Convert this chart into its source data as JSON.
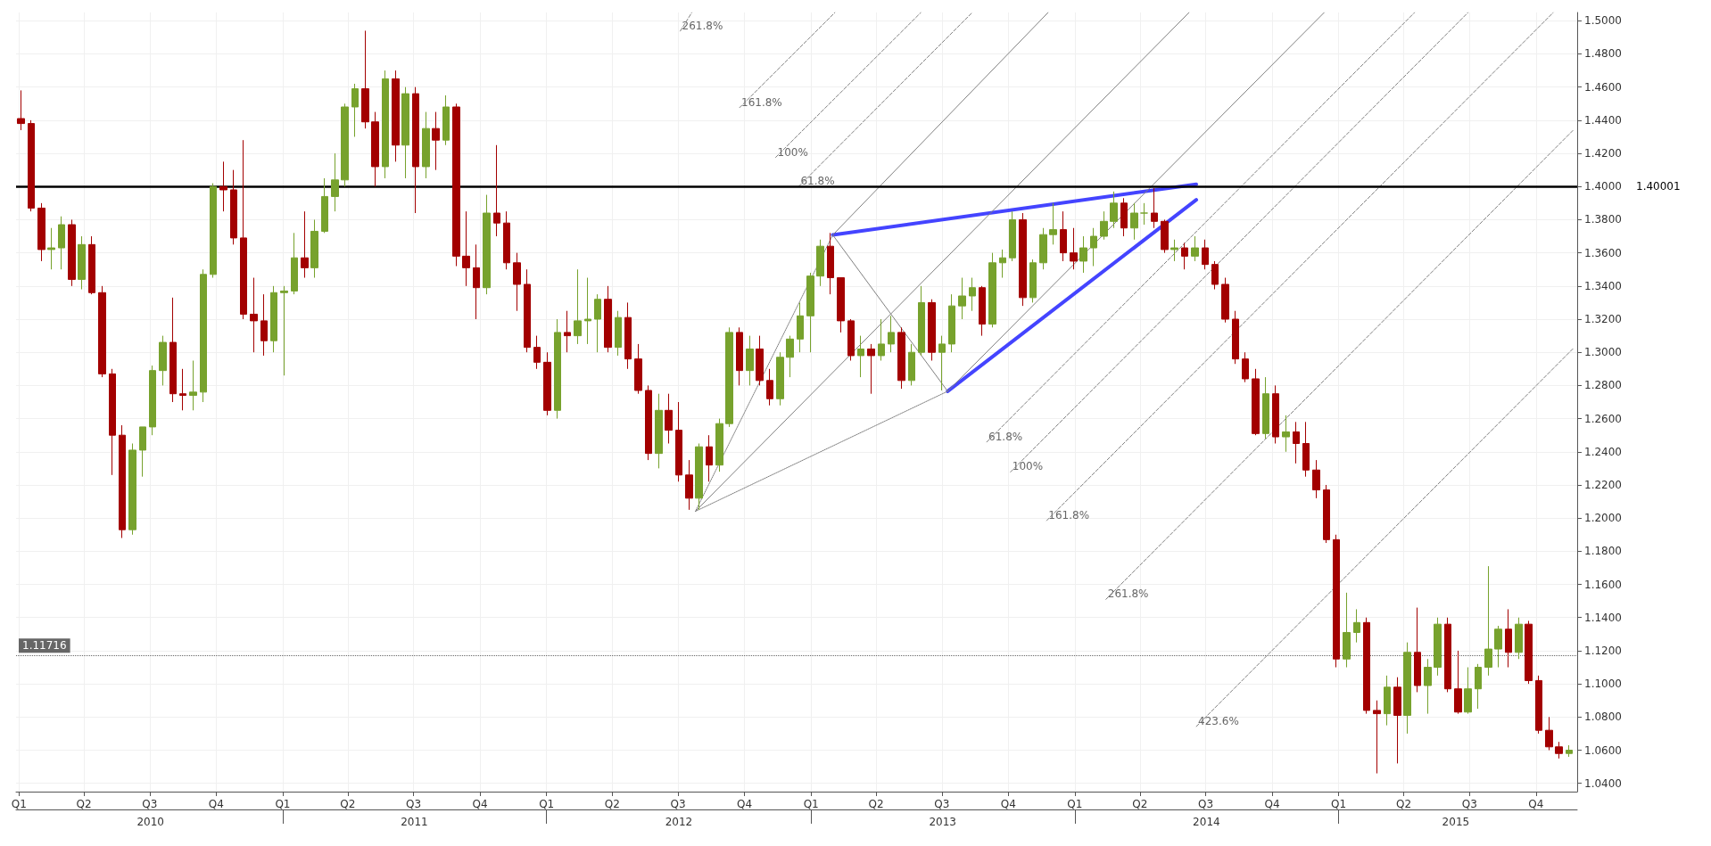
{
  "chart_data": {
    "type": "candlestick",
    "x": [
      "2010-01-04",
      "2010-01-18",
      "2010-02-01",
      "2010-02-15",
      "2010-03-01",
      "2010-03-15",
      "2010-03-29",
      "2010-04-12",
      "2010-04-26",
      "2010-05-10",
      "2010-05-24",
      "2010-06-07",
      "2010-06-21",
      "2010-07-05",
      "2010-07-19",
      "2010-08-02",
      "2010-08-16",
      "2010-08-30",
      "2010-09-13",
      "2010-09-27",
      "2010-10-11",
      "2010-10-25",
      "2010-11-08",
      "2010-11-22",
      "2010-12-06",
      "2010-12-20",
      "2011-01-03",
      "2011-01-17",
      "2011-01-31",
      "2011-02-14",
      "2011-02-28",
      "2011-03-14",
      "2011-03-28",
      "2011-04-11",
      "2011-04-25",
      "2011-05-09",
      "2011-05-23",
      "2011-06-06",
      "2011-06-20",
      "2011-07-04",
      "2011-07-18",
      "2011-08-01",
      "2011-08-15",
      "2011-08-29",
      "2011-09-12",
      "2011-09-26",
      "2011-10-10",
      "2011-10-24",
      "2011-11-07",
      "2011-11-21",
      "2011-12-05",
      "2011-12-19",
      "2012-01-02",
      "2012-01-16",
      "2012-01-30",
      "2012-02-13",
      "2012-02-27",
      "2012-03-12",
      "2012-03-26",
      "2012-04-09",
      "2012-04-23",
      "2012-05-07",
      "2012-05-21",
      "2012-06-04",
      "2012-06-18",
      "2012-07-02",
      "2012-07-16",
      "2012-07-30",
      "2012-08-13",
      "2012-08-27",
      "2012-09-10",
      "2012-09-24",
      "2012-10-08",
      "2012-10-22",
      "2012-11-05",
      "2012-11-19",
      "2012-12-03",
      "2012-12-17",
      "2012-12-31",
      "2013-01-14",
      "2013-01-28",
      "2013-02-11",
      "2013-02-25",
      "2013-03-11",
      "2013-03-25",
      "2013-04-08",
      "2013-04-22",
      "2013-05-06",
      "2013-05-20",
      "2013-06-03",
      "2013-06-17",
      "2013-07-01",
      "2013-07-15",
      "2013-07-29",
      "2013-08-12",
      "2013-08-26",
      "2013-09-09",
      "2013-09-23",
      "2013-10-07",
      "2013-10-21",
      "2013-11-04",
      "2013-11-18",
      "2013-12-02",
      "2013-12-16",
      "2013-12-30",
      "2014-01-13",
      "2014-01-27",
      "2014-02-10",
      "2014-02-24",
      "2014-03-10",
      "2014-03-24",
      "2014-04-07",
      "2014-04-21",
      "2014-05-05",
      "2014-05-19",
      "2014-06-02",
      "2014-06-16",
      "2014-06-30",
      "2014-07-14",
      "2014-07-28",
      "2014-08-11",
      "2014-08-25",
      "2014-09-08",
      "2014-09-22",
      "2014-10-06",
      "2014-10-20",
      "2014-11-03",
      "2014-11-17",
      "2014-12-01",
      "2014-12-15",
      "2014-12-29",
      "2015-01-12",
      "2015-01-26",
      "2015-02-09",
      "2015-02-23",
      "2015-03-09",
      "2015-03-23",
      "2015-04-06",
      "2015-04-20",
      "2015-05-04",
      "2015-05-18",
      "2015-06-01",
      "2015-06-15",
      "2015-06-29",
      "2015-07-13",
      "2015-07-27",
      "2015-08-10",
      "2015-08-24",
      "2015-09-07",
      "2015-09-21",
      "2015-10-05",
      "2015-10-19",
      "2015-11-02",
      "2015-11-16"
    ],
    "ohlc": [
      [
        1.441,
        1.458,
        1.434,
        1.438
      ],
      [
        1.438,
        1.44,
        1.385,
        1.387
      ],
      [
        1.387,
        1.39,
        1.355,
        1.362
      ],
      [
        1.362,
        1.375,
        1.35,
        1.363
      ],
      [
        1.363,
        1.382,
        1.35,
        1.377
      ],
      [
        1.377,
        1.38,
        1.34,
        1.344
      ],
      [
        1.344,
        1.37,
        1.338,
        1.365
      ],
      [
        1.365,
        1.37,
        1.335,
        1.336
      ],
      [
        1.336,
        1.34,
        1.285,
        1.287
      ],
      [
        1.287,
        1.29,
        1.226,
        1.25
      ],
      [
        1.25,
        1.256,
        1.188,
        1.193
      ],
      [
        1.193,
        1.245,
        1.19,
        1.241
      ],
      [
        1.241,
        1.255,
        1.225,
        1.255
      ],
      [
        1.255,
        1.292,
        1.25,
        1.289
      ],
      [
        1.289,
        1.31,
        1.28,
        1.306
      ],
      [
        1.306,
        1.333,
        1.27,
        1.275
      ],
      [
        1.275,
        1.29,
        1.265,
        1.274
      ],
      [
        1.274,
        1.295,
        1.265,
        1.276
      ],
      [
        1.276,
        1.35,
        1.27,
        1.347
      ],
      [
        1.347,
        1.402,
        1.345,
        1.4
      ],
      [
        1.4,
        1.415,
        1.385,
        1.398
      ],
      [
        1.398,
        1.41,
        1.365,
        1.369
      ],
      [
        1.369,
        1.428,
        1.32,
        1.323
      ],
      [
        1.323,
        1.345,
        1.3,
        1.319
      ],
      [
        1.319,
        1.335,
        1.298,
        1.307
      ],
      [
        1.307,
        1.34,
        1.3,
        1.336
      ],
      [
        1.336,
        1.34,
        1.286,
        1.337
      ],
      [
        1.337,
        1.372,
        1.335,
        1.357
      ],
      [
        1.357,
        1.385,
        1.345,
        1.351
      ],
      [
        1.351,
        1.38,
        1.345,
        1.373
      ],
      [
        1.373,
        1.405,
        1.372,
        1.394
      ],
      [
        1.394,
        1.42,
        1.385,
        1.404
      ],
      [
        1.404,
        1.45,
        1.4,
        1.448
      ],
      [
        1.448,
        1.462,
        1.43,
        1.459
      ],
      [
        1.459,
        1.494,
        1.435,
        1.439
      ],
      [
        1.439,
        1.445,
        1.4,
        1.412
      ],
      [
        1.412,
        1.47,
        1.405,
        1.465
      ],
      [
        1.465,
        1.47,
        1.415,
        1.425
      ],
      [
        1.425,
        1.46,
        1.405,
        1.456
      ],
      [
        1.456,
        1.46,
        1.384,
        1.412
      ],
      [
        1.412,
        1.445,
        1.405,
        1.435
      ],
      [
        1.435,
        1.445,
        1.41,
        1.428
      ],
      [
        1.428,
        1.455,
        1.425,
        1.448
      ],
      [
        1.448,
        1.45,
        1.352,
        1.358
      ],
      [
        1.358,
        1.385,
        1.34,
        1.351
      ],
      [
        1.351,
        1.365,
        1.32,
        1.339
      ],
      [
        1.339,
        1.395,
        1.335,
        1.384
      ],
      [
        1.384,
        1.425,
        1.37,
        1.378
      ],
      [
        1.378,
        1.385,
        1.35,
        1.354
      ],
      [
        1.354,
        1.36,
        1.325,
        1.341
      ],
      [
        1.341,
        1.35,
        1.3,
        1.303
      ],
      [
        1.303,
        1.31,
        1.29,
        1.294
      ],
      [
        1.294,
        1.3,
        1.262,
        1.265
      ],
      [
        1.265,
        1.32,
        1.26,
        1.312
      ],
      [
        1.312,
        1.325,
        1.3,
        1.31
      ],
      [
        1.31,
        1.35,
        1.305,
        1.319
      ],
      [
        1.319,
        1.345,
        1.305,
        1.32
      ],
      [
        1.32,
        1.335,
        1.3,
        1.332
      ],
      [
        1.332,
        1.34,
        1.3,
        1.303
      ],
      [
        1.303,
        1.325,
        1.298,
        1.321
      ],
      [
        1.321,
        1.33,
        1.29,
        1.296
      ],
      [
        1.296,
        1.305,
        1.275,
        1.277
      ],
      [
        1.277,
        1.28,
        1.235,
        1.239
      ],
      [
        1.239,
        1.275,
        1.23,
        1.265
      ],
      [
        1.265,
        1.275,
        1.245,
        1.253
      ],
      [
        1.253,
        1.27,
        1.222,
        1.226
      ],
      [
        1.226,
        1.235,
        1.205,
        1.212
      ],
      [
        1.212,
        1.245,
        1.205,
        1.243
      ],
      [
        1.243,
        1.25,
        1.222,
        1.232
      ],
      [
        1.232,
        1.26,
        1.228,
        1.257
      ],
      [
        1.257,
        1.315,
        1.255,
        1.312
      ],
      [
        1.312,
        1.315,
        1.28,
        1.289
      ],
      [
        1.289,
        1.31,
        1.28,
        1.302
      ],
      [
        1.302,
        1.31,
        1.28,
        1.283
      ],
      [
        1.283,
        1.29,
        1.268,
        1.272
      ],
      [
        1.272,
        1.3,
        1.268,
        1.297
      ],
      [
        1.297,
        1.31,
        1.285,
        1.308
      ],
      [
        1.308,
        1.33,
        1.3,
        1.322
      ],
      [
        1.322,
        1.348,
        1.3,
        1.346
      ],
      [
        1.346,
        1.368,
        1.34,
        1.364
      ],
      [
        1.364,
        1.372,
        1.335,
        1.345
      ],
      [
        1.345,
        1.345,
        1.312,
        1.319
      ],
      [
        1.319,
        1.32,
        1.295,
        1.298
      ],
      [
        1.298,
        1.31,
        1.285,
        1.302
      ],
      [
        1.302,
        1.305,
        1.275,
        1.298
      ],
      [
        1.298,
        1.32,
        1.295,
        1.305
      ],
      [
        1.305,
        1.322,
        1.3,
        1.312
      ],
      [
        1.312,
        1.315,
        1.278,
        1.283
      ],
      [
        1.283,
        1.305,
        1.28,
        1.3
      ],
      [
        1.3,
        1.34,
        1.298,
        1.33
      ],
      [
        1.33,
        1.332,
        1.295,
        1.3
      ],
      [
        1.3,
        1.31,
        1.277,
        1.305
      ],
      [
        1.305,
        1.335,
        1.3,
        1.328
      ],
      [
        1.328,
        1.345,
        1.32,
        1.334
      ],
      [
        1.334,
        1.345,
        1.325,
        1.339
      ],
      [
        1.339,
        1.34,
        1.31,
        1.317
      ],
      [
        1.317,
        1.36,
        1.315,
        1.354
      ],
      [
        1.354,
        1.362,
        1.345,
        1.357
      ],
      [
        1.357,
        1.385,
        1.355,
        1.38
      ],
      [
        1.38,
        1.384,
        1.328,
        1.333
      ],
      [
        1.333,
        1.356,
        1.33,
        1.354
      ],
      [
        1.354,
        1.375,
        1.35,
        1.371
      ],
      [
        1.371,
        1.39,
        1.365,
        1.374
      ],
      [
        1.374,
        1.385,
        1.355,
        1.36
      ],
      [
        1.36,
        1.375,
        1.35,
        1.355
      ],
      [
        1.355,
        1.37,
        1.348,
        1.363
      ],
      [
        1.363,
        1.375,
        1.352,
        1.37
      ],
      [
        1.37,
        1.385,
        1.368,
        1.379
      ],
      [
        1.379,
        1.397,
        1.375,
        1.39
      ],
      [
        1.39,
        1.393,
        1.37,
        1.375
      ],
      [
        1.375,
        1.39,
        1.368,
        1.384
      ],
      [
        1.384,
        1.39,
        1.377,
        1.384
      ],
      [
        1.384,
        1.399,
        1.375,
        1.379
      ],
      [
        1.379,
        1.38,
        1.36,
        1.362
      ],
      [
        1.362,
        1.368,
        1.355,
        1.363
      ],
      [
        1.363,
        1.366,
        1.35,
        1.358
      ],
      [
        1.358,
        1.37,
        1.355,
        1.363
      ],
      [
        1.363,
        1.368,
        1.35,
        1.353
      ],
      [
        1.353,
        1.355,
        1.338,
        1.341
      ],
      [
        1.341,
        1.345,
        1.318,
        1.32
      ],
      [
        1.32,
        1.325,
        1.293,
        1.296
      ],
      [
        1.296,
        1.3,
        1.282,
        1.284
      ],
      [
        1.284,
        1.29,
        1.25,
        1.251
      ],
      [
        1.251,
        1.285,
        1.248,
        1.275
      ],
      [
        1.275,
        1.28,
        1.245,
        1.249
      ],
      [
        1.249,
        1.262,
        1.24,
        1.252
      ],
      [
        1.252,
        1.258,
        1.233,
        1.245
      ],
      [
        1.245,
        1.258,
        1.225,
        1.229
      ],
      [
        1.229,
        1.235,
        1.212,
        1.217
      ],
      [
        1.217,
        1.22,
        1.185,
        1.187
      ],
      [
        1.187,
        1.19,
        1.11,
        1.115
      ],
      [
        1.115,
        1.155,
        1.11,
        1.131
      ],
      [
        1.131,
        1.145,
        1.125,
        1.137
      ],
      [
        1.137,
        1.14,
        1.082,
        1.084
      ],
      [
        1.084,
        1.09,
        1.046,
        1.082
      ],
      [
        1.082,
        1.105,
        1.075,
        1.098
      ],
      [
        1.098,
        1.104,
        1.052,
        1.081
      ],
      [
        1.081,
        1.125,
        1.07,
        1.119
      ],
      [
        1.119,
        1.146,
        1.095,
        1.099
      ],
      [
        1.099,
        1.115,
        1.082,
        1.11
      ],
      [
        1.11,
        1.14,
        1.105,
        1.136
      ],
      [
        1.136,
        1.14,
        1.095,
        1.097
      ],
      [
        1.097,
        1.12,
        1.082,
        1.083
      ],
      [
        1.083,
        1.11,
        1.082,
        1.097
      ],
      [
        1.097,
        1.112,
        1.085,
        1.11
      ],
      [
        1.11,
        1.171,
        1.105,
        1.121
      ],
      [
        1.121,
        1.135,
        1.11,
        1.133
      ],
      [
        1.133,
        1.145,
        1.11,
        1.119
      ],
      [
        1.119,
        1.14,
        1.115,
        1.136
      ],
      [
        1.136,
        1.138,
        1.1,
        1.102
      ],
      [
        1.102,
        1.105,
        1.07,
        1.072
      ],
      [
        1.072,
        1.08,
        1.06,
        1.062
      ],
      [
        1.062,
        1.065,
        1.055,
        1.058
      ],
      [
        1.058,
        1.063,
        1.056,
        1.06
      ]
    ],
    "colors": [
      "#a30000",
      "#a30000",
      "#a30000",
      "#77a22d",
      "#77a22d",
      "#a30000",
      "#77a22d",
      "#a30000",
      "#a30000",
      "#a30000",
      "#a30000",
      "#77a22d",
      "#77a22d",
      "#77a22d",
      "#77a22d",
      "#a30000",
      "#a30000",
      "#77a22d",
      "#77a22d",
      "#77a22d",
      "#a30000",
      "#a30000",
      "#a30000",
      "#a30000",
      "#a30000",
      "#77a22d",
      "#77a22d",
      "#77a22d",
      "#a30000",
      "#77a22d",
      "#77a22d",
      "#77a22d",
      "#77a22d",
      "#77a22d",
      "#a30000",
      "#a30000",
      "#77a22d",
      "#a30000",
      "#77a22d",
      "#a30000",
      "#77a22d",
      "#a30000",
      "#77a22d",
      "#a30000",
      "#a30000",
      "#a30000",
      "#77a22d",
      "#a30000",
      "#a30000",
      "#a30000",
      "#a30000",
      "#a30000",
      "#a30000",
      "#77a22d",
      "#a30000",
      "#77a22d",
      "#77a22d",
      "#77a22d",
      "#a30000",
      "#77a22d",
      "#a30000",
      "#a30000",
      "#a30000",
      "#77a22d",
      "#a30000",
      "#a30000",
      "#a30000",
      "#77a22d",
      "#a30000",
      "#77a22d",
      "#77a22d",
      "#a30000",
      "#77a22d",
      "#a30000",
      "#a30000",
      "#77a22d",
      "#77a22d",
      "#77a22d",
      "#77a22d",
      "#77a22d",
      "#a30000",
      "#a30000",
      "#a30000",
      "#77a22d",
      "#a30000",
      "#77a22d",
      "#77a22d",
      "#a30000",
      "#77a22d",
      "#77a22d",
      "#a30000",
      "#77a22d",
      "#77a22d",
      "#77a22d",
      "#77a22d",
      "#a30000",
      "#77a22d",
      "#77a22d",
      "#77a22d",
      "#a30000",
      "#77a22d",
      "#77a22d",
      "#77a22d",
      "#a30000",
      "#a30000",
      "#77a22d",
      "#77a22d",
      "#77a22d",
      "#77a22d",
      "#a30000",
      "#77a22d",
      "#77a22d",
      "#a30000",
      "#a30000",
      "#77a22d",
      "#a30000",
      "#77a22d",
      "#a30000",
      "#a30000",
      "#a30000",
      "#a30000",
      "#a30000",
      "#a30000",
      "#77a22d",
      "#a30000",
      "#77a22d",
      "#a30000",
      "#a30000",
      "#a30000",
      "#a30000",
      "#a30000",
      "#77a22d",
      "#77a22d",
      "#a30000",
      "#a30000",
      "#77a22d",
      "#a30000",
      "#77a22d",
      "#a30000",
      "#77a22d",
      "#77a22d",
      "#a30000",
      "#a30000",
      "#77a22d",
      "#77a22d",
      "#77a22d",
      "#77a22d",
      "#a30000",
      "#77a22d",
      "#a30000",
      "#a30000",
      "#a30000",
      "#a30000",
      "#77a22d"
    ],
    "series": [
      {
        "type": "line",
        "color": "#4444ff",
        "line_style": "solid",
        "x": [
          "2013-01-31",
          "2014-06-18"
        ],
        "values": [
          1.3708,
          1.4014
        ]
      },
      {
        "type": "line",
        "color": "#4444ff",
        "line_style": "solid",
        "x": [
          "2013-07-09",
          "2014-06-18"
        ],
        "values": [
          1.2765,
          1.392
        ]
      },
      {
        "type": "line",
        "color": "#808080",
        "line_style": "solid",
        "x": [
          "2012-07-25",
          "2014-06-08"
        ],
        "values": [
          1.2041,
          1.505
        ]
      },
      {
        "type": "line",
        "color": "#808080",
        "line_style": "solid",
        "x": [
          "2013-01-31",
          "2013-11-25"
        ],
        "values": [
          1.3708,
          1.505
        ]
      },
      {
        "type": "line",
        "color": "#808080",
        "line_style": "solid",
        "x": [
          "2013-07-09",
          "2014-12-12"
        ],
        "values": [
          1.2765,
          1.505
        ]
      },
      {
        "type": "line",
        "color": "#808080",
        "line_style": "solid",
        "x": [
          "2013-01-31",
          "2013-07-09"
        ],
        "values": [
          1.3708,
          1.2765
        ]
      },
      {
        "type": "line",
        "color": "#808080",
        "line_style": "dotted",
        "x": [
          "2012-07-25",
          "2013-01-31"
        ],
        "values": [
          1.2041,
          1.3708
        ]
      },
      {
        "type": "line",
        "color": "#808080",
        "line_style": "dotted",
        "x": [
          "2012-07-25",
          "2013-07-09"
        ],
        "values": [
          1.2041,
          1.2765
        ]
      },
      {
        "type": "line",
        "color": "#808080",
        "line_style": "dashed",
        "x": [
          "2012-07-04",
          "2012-07-20"
        ],
        "values": [
          1.4938,
          1.505
        ]
      },
      {
        "type": "line",
        "color": "#808080",
        "line_style": "dashed",
        "x": [
          "2012-09-24",
          "2013-02-03"
        ],
        "values": [
          1.4476,
          1.505
        ]
      },
      {
        "type": "line",
        "color": "#808080",
        "line_style": "dashed",
        "x": [
          "2012-11-13",
          "2013-06-02"
        ],
        "values": [
          1.4176,
          1.505
        ]
      },
      {
        "type": "line",
        "color": "#808080",
        "line_style": "dashed",
        "x": [
          "2012-12-15",
          "2013-08-12"
        ],
        "values": [
          1.4001,
          1.505
        ]
      },
      {
        "type": "line",
        "color": "#808080",
        "line_style": "dashed",
        "x": [
          "2013-09-01",
          "2015-04-16"
        ],
        "values": [
          1.2459,
          1.505
        ]
      },
      {
        "type": "line",
        "color": "#808080",
        "line_style": "dashed",
        "x": [
          "2013-10-04",
          "2015-06-29"
        ],
        "values": [
          1.2278,
          1.505
        ]
      },
      {
        "type": "line",
        "color": "#808080",
        "line_style": "dashed",
        "x": [
          "2013-11-23",
          "2015-10-25"
        ],
        "values": [
          1.1985,
          1.505
        ]
      },
      {
        "type": "line",
        "color": "#808080",
        "line_style": "dashed",
        "x": [
          "2014-02-13",
          "2015-11-21"
        ],
        "values": [
          1.151,
          1.4338
        ]
      },
      {
        "type": "line",
        "color": "#808080",
        "line_style": "dashed",
        "x": [
          "2014-06-18",
          "2015-11-21"
        ],
        "values": [
          1.0743,
          1.3021
        ]
      }
    ],
    "marker": "none",
    "ref_lines": [
      {
        "axis": "y",
        "value": 1.40001,
        "label": "1.40001",
        "color": "#000000",
        "line_style": "solid"
      },
      {
        "axis": "y",
        "value": 1.11716,
        "label": "1.11716",
        "color": "#666666",
        "line_style": "dotted"
      }
    ],
    "annotations": [
      {
        "text": "261.8%",
        "x": "2012-07-04",
        "y": 1.4938
      },
      {
        "text": "161.8%",
        "x": "2012-09-24",
        "y": 1.4476
      },
      {
        "text": "100%",
        "x": "2012-11-13",
        "y": 1.4176
      },
      {
        "text": "61.8%",
        "x": "2012-12-15",
        "y": 1.4001
      },
      {
        "text": "61.8%",
        "x": "2013-09-01",
        "y": 1.2459
      },
      {
        "text": "100%",
        "x": "2013-10-04",
        "y": 1.2278
      },
      {
        "text": "161.8%",
        "x": "2013-11-23",
        "y": 1.1985
      },
      {
        "text": "261.8%",
        "x": "2014-02-13",
        "y": 1.151
      },
      {
        "text": "423.6%",
        "x": "2014-06-18",
        "y": 1.0743
      }
    ],
    "xlim": [
      "2009-12-28",
      "2015-11-27"
    ],
    "xticks": [
      {
        "value": "2010-01-01",
        "label": "Q1"
      },
      {
        "value": "2010-04-01",
        "label": "Q2"
      },
      {
        "value": "2010-07-01",
        "label": "Q3"
      },
      {
        "value": "2010-10-01",
        "label": "Q4"
      },
      {
        "value": "2011-01-01",
        "label": "Q1"
      },
      {
        "value": "2011-04-01",
        "label": "Q2"
      },
      {
        "value": "2011-07-01",
        "label": "Q3"
      },
      {
        "value": "2011-10-01",
        "label": "Q4"
      },
      {
        "value": "2012-01-01",
        "label": "Q1"
      },
      {
        "value": "2012-04-01",
        "label": "Q2"
      },
      {
        "value": "2012-07-01",
        "label": "Q3"
      },
      {
        "value": "2012-10-01",
        "label": "Q4"
      },
      {
        "value": "2013-01-01",
        "label": "Q1"
      },
      {
        "value": "2013-04-01",
        "label": "Q2"
      },
      {
        "value": "2013-07-01",
        "label": "Q3"
      },
      {
        "value": "2013-10-01",
        "label": "Q4"
      },
      {
        "value": "2014-01-01",
        "label": "Q1"
      },
      {
        "value": "2014-04-01",
        "label": "Q2"
      },
      {
        "value": "2014-07-01",
        "label": "Q3"
      },
      {
        "value": "2014-10-01",
        "label": "Q4"
      },
      {
        "value": "2015-01-01",
        "label": "Q1"
      },
      {
        "value": "2015-04-01",
        "label": "Q2"
      },
      {
        "value": "2015-07-01",
        "label": "Q3"
      },
      {
        "value": "2015-10-01",
        "label": "Q4"
      }
    ],
    "x2lim": [
      "2009-12-28",
      "2015-11-27"
    ],
    "x2ticks": [
      {
        "value": "2010-07-02",
        "label": "2010"
      },
      {
        "value": "2011-01-01",
        "label": null
      },
      {
        "value": "2011-07-02",
        "label": "2011"
      },
      {
        "value": "2012-01-01",
        "label": null
      },
      {
        "value": "2012-07-02",
        "label": "2012"
      },
      {
        "value": "2013-01-01",
        "label": null
      },
      {
        "value": "2013-07-02",
        "label": "2013"
      },
      {
        "value": "2014-01-01",
        "label": null
      },
      {
        "value": "2014-07-02",
        "label": "2014"
      },
      {
        "value": "2015-01-01",
        "label": null
      },
      {
        "value": "2015-06-12",
        "label": "2015"
      }
    ],
    "ylim": [
      1.035,
      1.505
    ],
    "yticks": [
      {
        "value": 1.04,
        "label": "1.0400"
      },
      {
        "value": 1.06,
        "label": "1.0600"
      },
      {
        "value": 1.08,
        "label": "1.0800"
      },
      {
        "value": 1.1,
        "label": "1.1000"
      },
      {
        "value": 1.12,
        "label": "1.1200"
      },
      {
        "value": 1.14,
        "label": "1.1400"
      },
      {
        "value": 1.16,
        "label": "1.1600"
      },
      {
        "value": 1.18,
        "label": "1.1800"
      },
      {
        "value": 1.2,
        "label": "1.2000"
      },
      {
        "value": 1.22,
        "label": "1.2200"
      },
      {
        "value": 1.24,
        "label": "1.2400"
      },
      {
        "value": 1.26,
        "label": "1.2600"
      },
      {
        "value": 1.28,
        "label": "1.2800"
      },
      {
        "value": 1.3,
        "label": "1.3000"
      },
      {
        "value": 1.32,
        "label": "1.3200"
      },
      {
        "value": 1.34,
        "label": "1.3400"
      },
      {
        "value": 1.36,
        "label": "1.3600"
      },
      {
        "value": 1.38,
        "label": "1.3800"
      },
      {
        "value": 1.4,
        "label": "1.4000"
      },
      {
        "value": 1.42,
        "label": "1.4200"
      },
      {
        "value": 1.44,
        "label": "1.4400"
      },
      {
        "value": 1.46,
        "label": "1.4600"
      },
      {
        "value": 1.48,
        "label": "1.4800"
      },
      {
        "value": 1.5,
        "label": "1.5000"
      }
    ],
    "grid": true
  }
}
